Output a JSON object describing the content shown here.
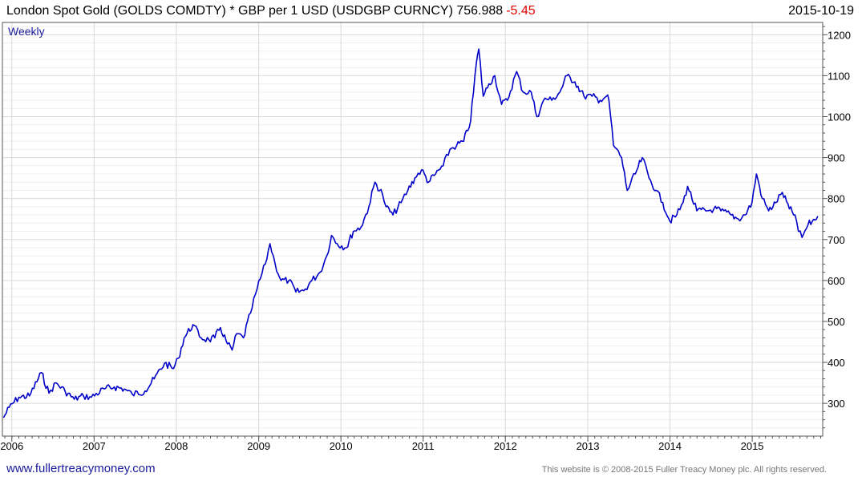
{
  "header": {
    "title": "London Spot Gold (GOLDS COMDTY) * GBP per 1 USD (USDGBP CURNCY) 756.988",
    "change": "-5.45",
    "date": "2015-10-19"
  },
  "frequency_label": "Weekly",
  "footer": {
    "website": "www.fullertreacymoney.com",
    "copyright": "This website is © 2008-2015 Fuller Treacy Money plc. All rights reserved."
  },
  "colors": {
    "line": "#0000c8",
    "grid": "#d9d9d9",
    "change": "#e00000"
  },
  "chart_data": {
    "type": "line",
    "title": "London Spot Gold (GOLDS COMDTY) * GBP per 1 USD (USDGBP CURNCY)",
    "last_value": 756.988,
    "change": -5.45,
    "y_ticks": [
      300,
      400,
      500,
      600,
      700,
      800,
      900,
      1000,
      1100,
      1200
    ],
    "x_ticks": [
      "2006",
      "2007",
      "2008",
      "2009",
      "2010",
      "2011",
      "2012",
      "2013",
      "2014",
      "2015"
    ],
    "xlim": [
      "2005-11-20",
      "2015-11-10"
    ],
    "ylim": [
      220,
      1230
    ],
    "y_axis_side": "right",
    "grid": true,
    "series": [
      {
        "points": [
          [
            "2005-11-25",
            265
          ],
          [
            "2005-12-20",
            290
          ],
          [
            "2006-02-01",
            315
          ],
          [
            "2006-03-20",
            318
          ],
          [
            "2006-05-12",
            375
          ],
          [
            "2006-06-15",
            325
          ],
          [
            "2006-07-15",
            350
          ],
          [
            "2006-08-25",
            330
          ],
          [
            "2006-10-05",
            310
          ],
          [
            "2006-11-15",
            318
          ],
          [
            "2006-12-20",
            315
          ],
          [
            "2007-02-15",
            335
          ],
          [
            "2007-04-01",
            340
          ],
          [
            "2007-05-15",
            335
          ],
          [
            "2007-06-20",
            322
          ],
          [
            "2007-08-15",
            330
          ],
          [
            "2007-09-25",
            360
          ],
          [
            "2007-11-10",
            398
          ],
          [
            "2007-12-20",
            385
          ],
          [
            "2008-01-10",
            410
          ],
          [
            "2008-02-05",
            460
          ],
          [
            "2008-03-15",
            492
          ],
          [
            "2008-04-20",
            460
          ],
          [
            "2008-05-25",
            455
          ],
          [
            "2008-06-20",
            460
          ],
          [
            "2008-07-15",
            485
          ],
          [
            "2008-08-15",
            445
          ],
          [
            "2008-09-05",
            430
          ],
          [
            "2008-09-25",
            470
          ],
          [
            "2008-10-25",
            460
          ],
          [
            "2008-11-25",
            520
          ],
          [
            "2008-12-25",
            580
          ],
          [
            "2009-01-30",
            640
          ],
          [
            "2009-02-20",
            690
          ],
          [
            "2009-03-15",
            640
          ],
          [
            "2009-04-10",
            600
          ],
          [
            "2009-05-15",
            600
          ],
          [
            "2009-06-15",
            572
          ],
          [
            "2009-07-20",
            575
          ],
          [
            "2009-08-25",
            600
          ],
          [
            "2009-09-30",
            620
          ],
          [
            "2009-10-30",
            660
          ],
          [
            "2009-11-20",
            710
          ],
          [
            "2009-12-15",
            690
          ],
          [
            "2010-01-25",
            680
          ],
          [
            "2010-02-25",
            720
          ],
          [
            "2010-03-31",
            730
          ],
          [
            "2010-05-05",
            780
          ],
          [
            "2010-06-01",
            840
          ],
          [
            "2010-07-05",
            810
          ],
          [
            "2010-07-20",
            780
          ],
          [
            "2010-08-20",
            760
          ],
          [
            "2010-09-25",
            790
          ],
          [
            "2010-10-25",
            820
          ],
          [
            "2010-11-25",
            850
          ],
          [
            "2010-12-25",
            870
          ],
          [
            "2011-01-25",
            840
          ],
          [
            "2011-02-25",
            860
          ],
          [
            "2011-03-31",
            880
          ],
          [
            "2011-04-30",
            920
          ],
          [
            "2011-05-30",
            930
          ],
          [
            "2011-06-30",
            940
          ],
          [
            "2011-07-31",
            990
          ],
          [
            "2011-08-25",
            1130
          ],
          [
            "2011-09-05",
            1165
          ],
          [
            "2011-09-25",
            1050
          ],
          [
            "2011-10-20",
            1080
          ],
          [
            "2011-11-15",
            1100
          ],
          [
            "2011-12-15",
            1030
          ],
          [
            "2012-01-10",
            1040
          ],
          [
            "2012-02-20",
            1110
          ],
          [
            "2012-03-20",
            1060
          ],
          [
            "2012-04-25",
            1060
          ],
          [
            "2012-05-20",
            1000
          ],
          [
            "2012-06-25",
            1045
          ],
          [
            "2012-07-25",
            1040
          ],
          [
            "2012-08-30",
            1060
          ],
          [
            "2012-09-30",
            1100
          ],
          [
            "2012-11-05",
            1085
          ],
          [
            "2012-12-15",
            1050
          ],
          [
            "2013-01-20",
            1050
          ],
          [
            "2013-02-25",
            1040
          ],
          [
            "2013-03-25",
            1050
          ],
          [
            "2013-04-05",
            1040
          ],
          [
            "2013-04-25",
            930
          ],
          [
            "2013-05-31",
            900
          ],
          [
            "2013-06-25",
            820
          ],
          [
            "2013-07-31",
            860
          ],
          [
            "2013-08-31",
            900
          ],
          [
            "2013-09-30",
            850
          ],
          [
            "2013-10-31",
            820
          ],
          [
            "2013-11-30",
            790
          ],
          [
            "2013-12-31",
            745
          ],
          [
            "2014-01-31",
            760
          ],
          [
            "2014-02-28",
            790
          ],
          [
            "2014-03-20",
            830
          ],
          [
            "2014-04-30",
            770
          ],
          [
            "2014-06-15",
            770
          ],
          [
            "2014-07-15",
            775
          ],
          [
            "2014-08-15",
            770
          ],
          [
            "2014-09-30",
            760
          ],
          [
            "2014-10-31",
            750
          ],
          [
            "2014-11-30",
            760
          ],
          [
            "2014-12-31",
            790
          ],
          [
            "2015-01-20",
            860
          ],
          [
            "2015-02-15",
            800
          ],
          [
            "2015-03-15",
            770
          ],
          [
            "2015-04-15",
            790
          ],
          [
            "2015-05-15",
            815
          ],
          [
            "2015-06-15",
            775
          ],
          [
            "2015-07-10",
            760
          ],
          [
            "2015-07-25",
            720
          ],
          [
            "2015-08-10",
            705
          ],
          [
            "2015-09-05",
            735
          ],
          [
            "2015-09-25",
            745
          ],
          [
            "2015-10-19",
            757
          ]
        ]
      }
    ]
  }
}
